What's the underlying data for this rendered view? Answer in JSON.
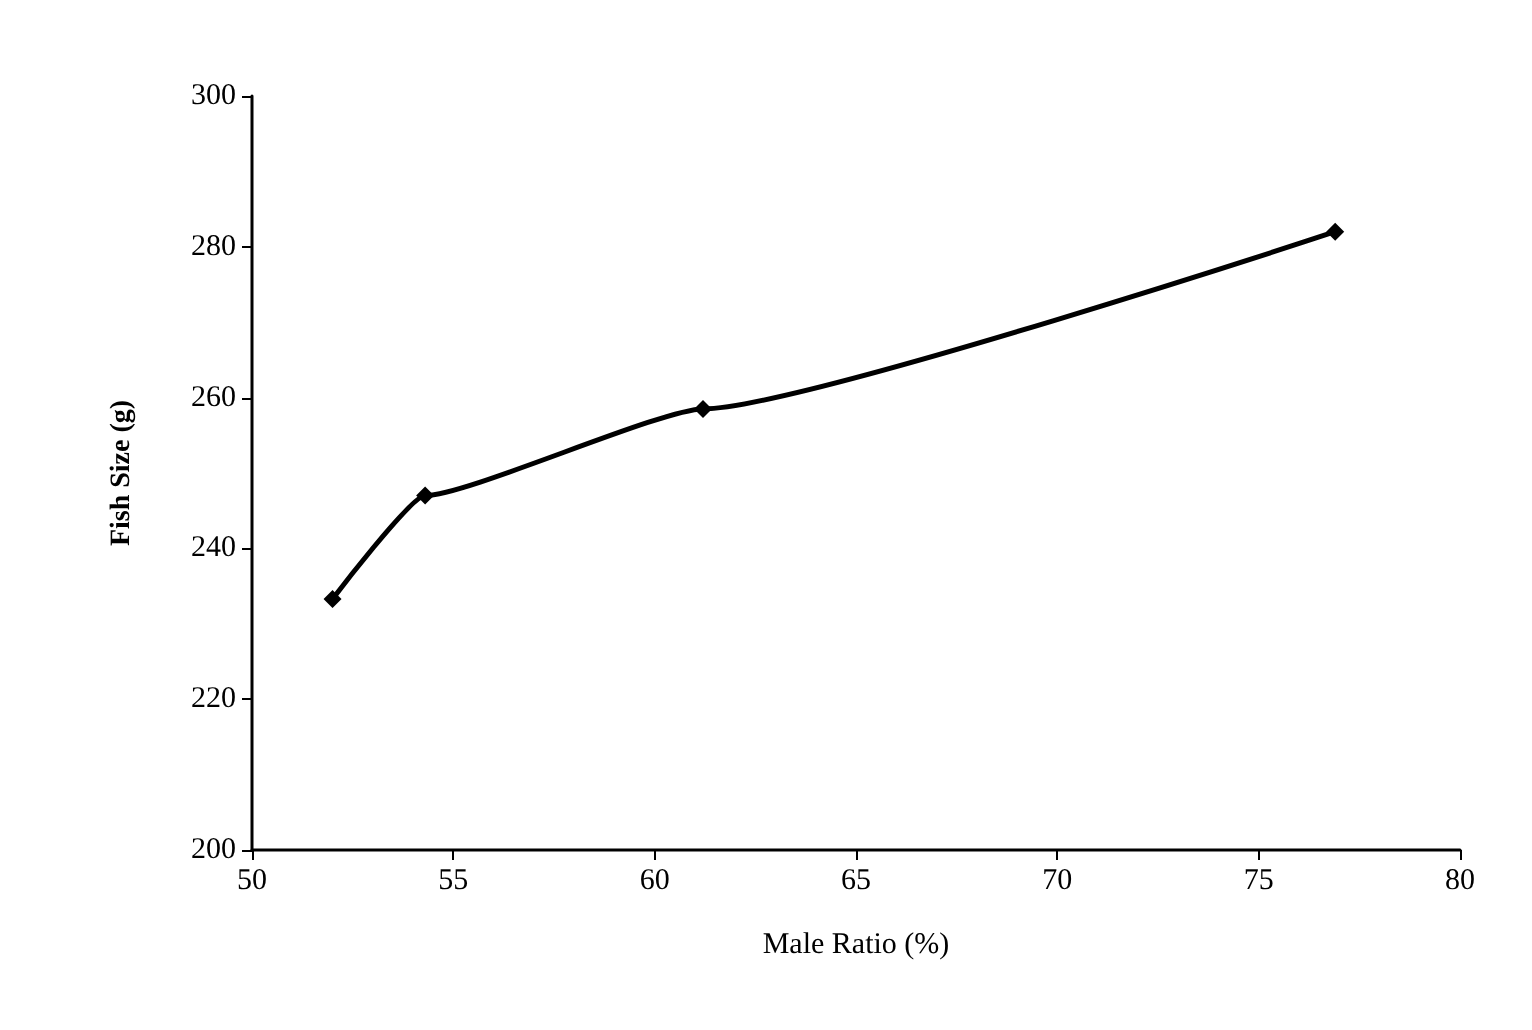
{
  "chart_data": {
    "type": "line",
    "xlabel": "Male Ratio (%)",
    "ylabel": "Fish Size (g)",
    "x": [
      52,
      54.3,
      61.2,
      76.9
    ],
    "series": [
      {
        "color": "#000000",
        "values": [
          233.3,
          247,
          258.5,
          282
        ]
      }
    ],
    "xlim": [
      50,
      80
    ],
    "xticks": [
      50,
      55,
      60,
      65,
      70,
      75,
      80
    ],
    "ylim": [
      200,
      300
    ],
    "yticks": [
      200,
      220,
      240,
      260,
      280,
      300
    ],
    "grid": false,
    "marker": "diamond",
    "line_style": "solid"
  }
}
